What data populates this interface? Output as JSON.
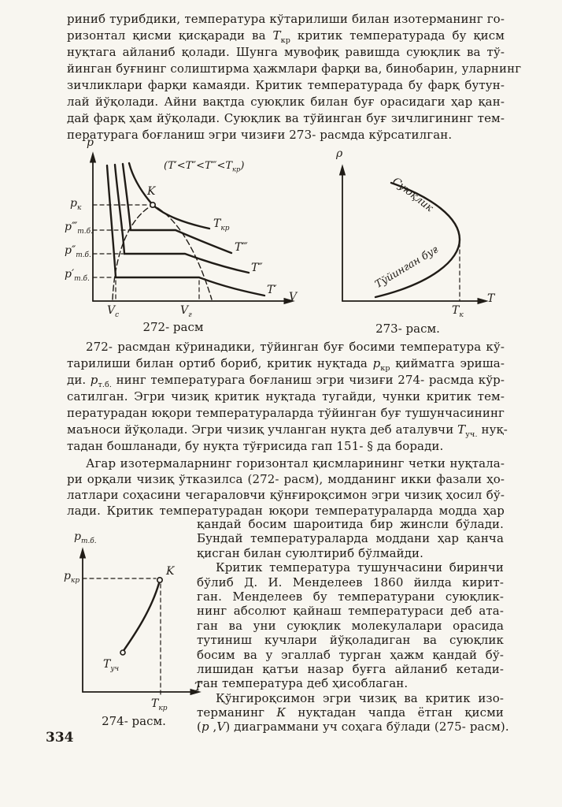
{
  "page": {
    "number": "334"
  },
  "colors": {
    "paper": "#f8f6f0",
    "ink": "#201c17"
  },
  "paragraph1": {
    "lines": [
      "риниб турибдики, температура кўтарилиши билан  изотерманинг го-",
      "ризонтал қисми қисқаради ва <i>Т</i><sub>кр</sub> критик температурада бу қисм",
      "нуқтага айланиб қолади. Шунга мувофиқ равишда суюқлик ва тў-",
      "йинган буғнинг солиштирма ҳажмлари фарқи ва, бинобарин, уларнинг",
      "зичликлари фарқи камаяди. Критик температурада бу фарқ бутун-",
      "лай йўқолади. Айни вақтда суюқлик билан буғ орасидаги ҳар қан-",
      "дай фарқ ҳам йўқолади. Суюқлик ва тўйинган буғ зичлигининг тем-",
      "пературага боғланиш эгри чизиғи 273- расмда кўрсатилган."
    ]
  },
  "paragraph2": {
    "lines": [
      "272- расмдан кўринадики, тўйинган буғ босими температура кў-",
      "тарилиши билан ортиб бориб, критик нуқтада <i>р</i><sub>кр</sub> қийматга эриша-",
      "ди. <i>р</i><sub>т.б.</sub> нинг температурага боғланиш эгри чизиғи 274- расмда кўр-",
      "сатилган. Эгри чизиқ критик нуқтада тугайди, чунки критик тем-",
      "пературадан юқори температураларда тўйинган буғ тушунчасининг",
      "маъноси йўқолади. Эгри чизиқ учланган нуқта деб аталувчи <i>Т</i><sub>уч.</sub> нуқ-",
      "тадан бошланади, бу нуқта тўғрисида гап 151- § да боради."
    ]
  },
  "paragraph3": {
    "lines": [
      "Агар изотермаларнинг горизонтал қисмларининг четки нуқтала-",
      "ри орқали чизиқ ўтказилса (272- расм), модданинг икки фазали ҳо-",
      "латлари соҳасини чегараловчи қўнғироқсимон эгри чизиқ ҳосил бў-",
      "лади. Критик температурадан юқори температураларда модда ҳар"
    ]
  },
  "right_column": {
    "lines": [
      "қандай босим шароитида бир жинсли бўлади.",
      "Бундай температураларда моддани ҳар қанча",
      "қисган билан суюлтириб бўлмайди.",
      "Критик температура тушунчасини биринчи",
      "бўлиб Д. И. Менделеев 1860 йилда кирит-",
      "ган. Менделеев бу температурани суюқлик-",
      "нинг абсолют қайнаш температураси деб ата-",
      "ган ва уни суюқлик молекулалари орасида",
      "тутиниш кучлари йўқоладиган ва суюқлик",
      "босим ва у эгаллаб турган ҳажм қандай бў-",
      "лишидан қатъи назар буғга айланиб кетади-",
      "ган температура деб ҳисоблаган.",
      "Қўнгироқсимон эгри чизиқ ва критик изо-",
      "терманинг <i>К</i> нуқтадан чапда ётган қисми",
      "(<i>р</i> ,<i>V</i>) диаграммани уч соҳага бўлади (275- расм)."
    ]
  },
  "fig272": {
    "caption": "272- расм",
    "y_label": "p",
    "x_label": "V",
    "annotation": "(T′&lt;T″&lt;T‴&lt;T<sub>кр</sub>)",
    "point_k": "K",
    "p_k": "p<sub>к</sub>",
    "p_tb3": "p‴<sub>т.б.</sub>",
    "p_tb2": "p″<sub>т.б.</sub>",
    "p_tb1": "p′<sub>т.б.</sub>",
    "t_kr": "T<sub>кр</sub>",
    "t3": "T‴",
    "t2": "T″",
    "t1": "T′",
    "v_c": "V<sub>с</sub>",
    "v_g": "V<sub>г</sub>"
  },
  "fig273": {
    "caption": "273- расм.",
    "y_label": "ρ",
    "x_label": "T",
    "t_k": "T<sub>к</sub>",
    "upper_curve_label": "Суюқлик",
    "lower_curve_label": "Тўйинган буғ"
  },
  "fig274": {
    "caption": "274- расм.",
    "y_label": "p<sub>т.б.</sub>",
    "x_label": "T",
    "p_kr": "p<sub>кр</sub>",
    "point_k": "K",
    "t_uch": "T<sub>уч</sub>",
    "t_kr": "T<sub>кр</sub>"
  }
}
